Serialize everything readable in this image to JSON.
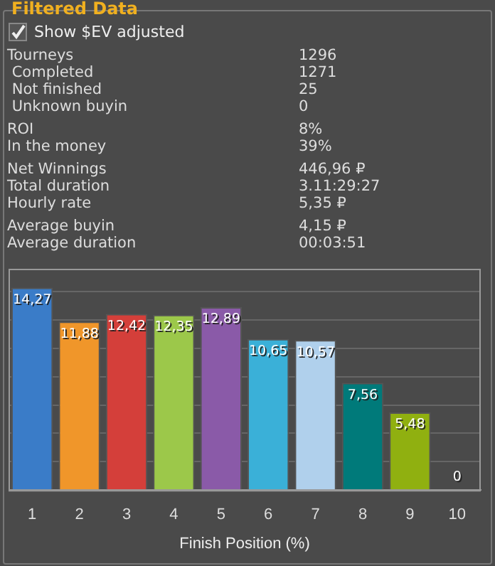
{
  "chart_data": {
    "type": "bar",
    "title": "Filtered Data",
    "annotations": [
      "Show $EV adjusted",
      "Tourneys",
      "1296",
      " Completed",
      "1271",
      " Not finished",
      "25",
      " Unknown buyin",
      "0",
      "ROI",
      "8%",
      "In the money",
      "39%",
      "Net Winnings",
      "446,96 ₽",
      "Total duration",
      "3.11:29:27",
      "Hourly rate",
      "5,35 ₽",
      "Average buyin",
      "4,15 ₽",
      "Average duration",
      "00:03:51"
    ],
    "xlabel": "Finish Position (%)",
    "categories": [
      "1",
      "2",
      "3",
      "4",
      "5",
      "6",
      "7",
      "8",
      "9",
      "10"
    ],
    "values": [
      14.27,
      11.88,
      12.42,
      12.35,
      12.89,
      10.65,
      10.57,
      7.56,
      5.48,
      0
    ],
    "value_labels": [
      "14,27",
      "11,88",
      "12,42",
      "12,35",
      "12,89",
      "10,65",
      "10,57",
      "7,56",
      "5,48",
      "0"
    ],
    "colors": [
      "#3a7cc8",
      "#f0962a",
      "#d43f3a",
      "#9cc84a",
      "#8a5aa8",
      "#3ab0d8",
      "#b0d0ec",
      "#007a7a",
      "#90b010",
      "#888888"
    ],
    "ylim": [
      0,
      15.6
    ],
    "yticks": [
      0,
      2,
      4,
      6,
      8,
      10,
      12,
      14
    ],
    "tick_labels": "x",
    "grid": "y",
    "legend": false
  }
}
